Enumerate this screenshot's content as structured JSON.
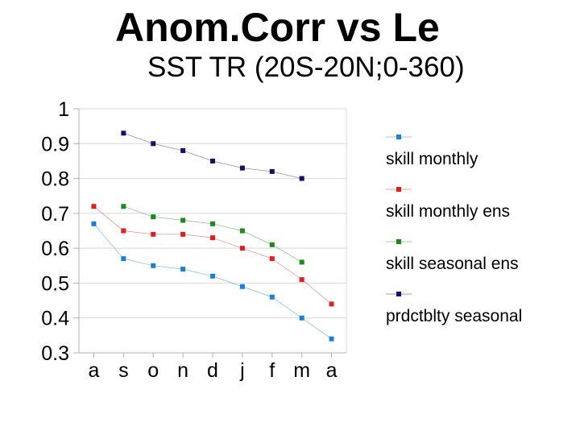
{
  "chart_data": {
    "type": "line",
    "title": "Anom.Corr vs Le",
    "subtitle": "SST TR (20S-20N;0-360)",
    "categories": [
      "a",
      "s",
      "o",
      "n",
      "d",
      "j",
      "f",
      "m",
      "a"
    ],
    "y_ticks": [
      "1",
      "0.9",
      "0.8",
      "0.7",
      "0.6",
      "0.5",
      "0.4",
      "0.3"
    ],
    "ylim": [
      0.3,
      1.0
    ],
    "grid": true,
    "legend_position": "right",
    "series": [
      {
        "name": "skill monthly",
        "color": "#1a7fd9",
        "values": [
          0.67,
          0.57,
          0.55,
          0.54,
          0.52,
          0.49,
          0.46,
          0.4,
          0.34
        ]
      },
      {
        "name": "skill monthly ens",
        "color": "#e02020",
        "values": [
          0.72,
          0.65,
          0.64,
          0.64,
          0.63,
          0.6,
          0.57,
          0.51,
          0.44
        ]
      },
      {
        "name": "skill seasonal ens",
        "color": "#1a8a1a",
        "values": [
          null,
          0.72,
          0.69,
          0.68,
          0.67,
          0.65,
          0.61,
          0.56,
          null
        ]
      },
      {
        "name": "prdctblty seasonal",
        "color": "#10106e",
        "values": [
          null,
          0.93,
          0.9,
          0.88,
          0.85,
          0.83,
          0.82,
          0.8,
          null
        ]
      }
    ]
  }
}
